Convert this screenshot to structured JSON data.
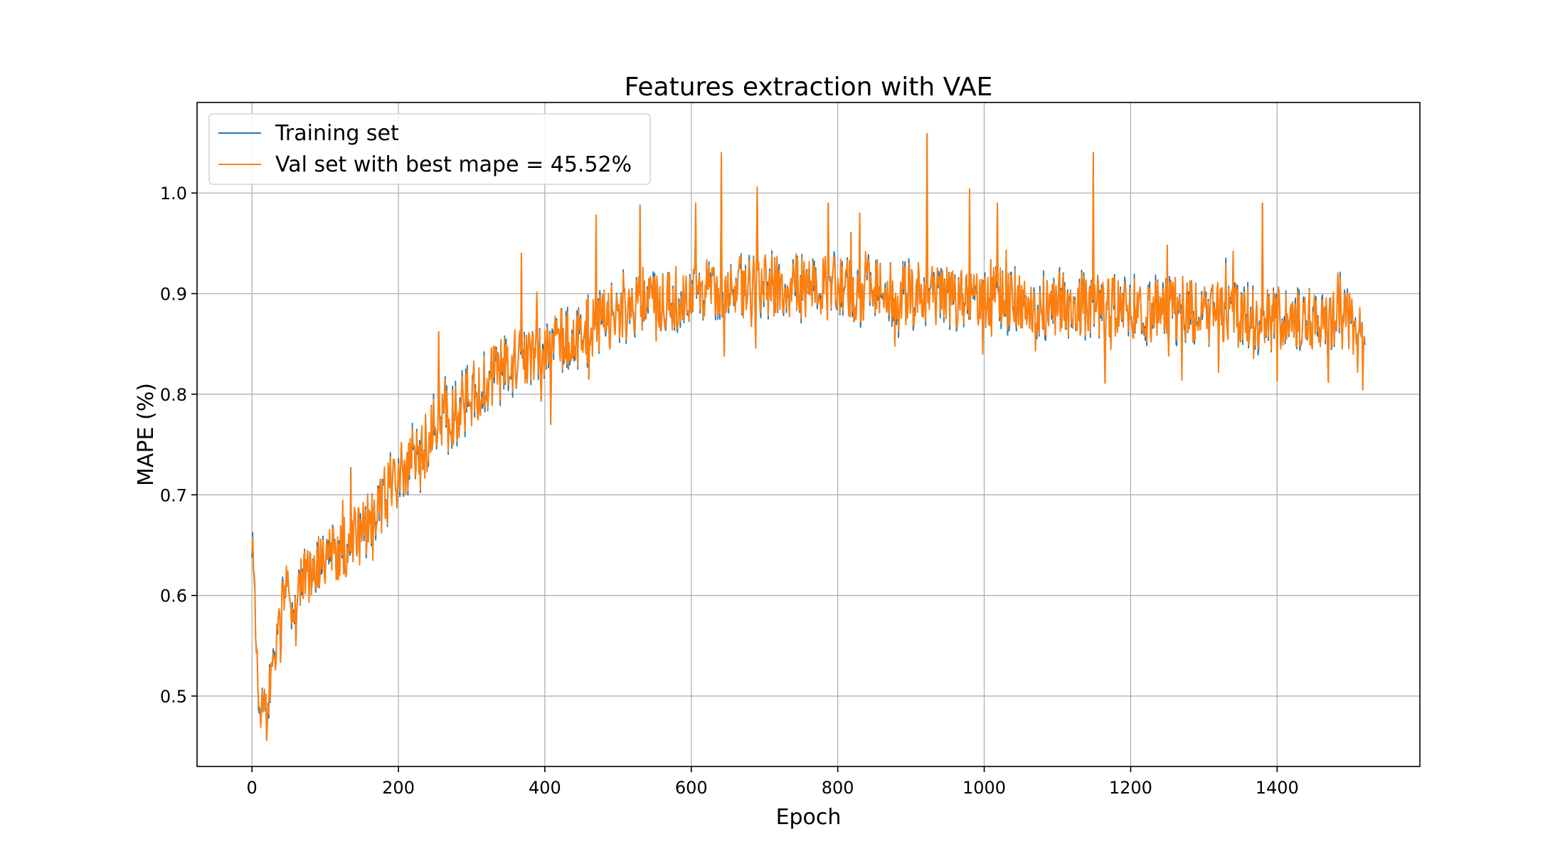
{
  "chart_data": {
    "type": "line",
    "title": "Features extraction with VAE",
    "xlabel": "Epoch",
    "ylabel": "MAPE (%)",
    "xlim": [
      -75,
      1595
    ],
    "ylim": [
      0.43,
      1.09
    ],
    "xticks": [
      0,
      200,
      400,
      600,
      800,
      1000,
      1200,
      1400
    ],
    "xtick_labels": [
      "0",
      "200",
      "400",
      "600",
      "800",
      "1000",
      "1200",
      "1400"
    ],
    "yticks": [
      0.5,
      0.6,
      0.7,
      0.8,
      0.9,
      1.0
    ],
    "ytick_labels": [
      "0.5",
      "0.6",
      "0.7",
      "0.8",
      "0.9",
      "1.0"
    ],
    "grid": true,
    "legend_position": "top-left",
    "epochs": [
      0,
      1520
    ],
    "series": [
      {
        "name": "Training set",
        "color": "#1f77b4",
        "trend": [
          [
            0,
            0.672
          ],
          [
            5,
            0.56
          ],
          [
            10,
            0.5
          ],
          [
            20,
            0.49
          ],
          [
            30,
            0.53
          ],
          [
            45,
            0.6
          ],
          [
            70,
            0.61
          ],
          [
            100,
            0.64
          ],
          [
            150,
            0.66
          ],
          [
            200,
            0.72
          ],
          [
            250,
            0.76
          ],
          [
            300,
            0.8
          ],
          [
            350,
            0.83
          ],
          [
            400,
            0.85
          ],
          [
            450,
            0.86
          ],
          [
            500,
            0.88
          ],
          [
            550,
            0.89
          ],
          [
            600,
            0.9
          ],
          [
            650,
            0.905
          ],
          [
            700,
            0.91
          ],
          [
            800,
            0.905
          ],
          [
            900,
            0.9
          ],
          [
            1000,
            0.895
          ],
          [
            1100,
            0.89
          ],
          [
            1200,
            0.885
          ],
          [
            1300,
            0.88
          ],
          [
            1400,
            0.875
          ],
          [
            1500,
            0.87
          ],
          [
            1520,
            0.855
          ]
        ],
        "spikes_high": [
          [
            255,
            0.862
          ],
          [
            368,
            0.94
          ],
          [
            470,
            0.978
          ],
          [
            530,
            0.988
          ],
          [
            606,
            0.99
          ],
          [
            641,
            1.04
          ],
          [
            690,
            1.006
          ],
          [
            787,
            0.99
          ],
          [
            830,
            0.98
          ],
          [
            922,
            1.059
          ],
          [
            980,
            1.004
          ],
          [
            1018,
            0.99
          ],
          [
            1149,
            1.04
          ],
          [
            1250,
            0.948
          ],
          [
            1340,
            0.942
          ],
          [
            1380,
            0.99
          ],
          [
            1470,
            0.962
          ]
        ],
        "spikes_low": [
          [
            15,
            0.484
          ],
          [
            20,
            0.456
          ],
          [
            60,
            0.55
          ],
          [
            165,
            0.635
          ],
          [
            395,
            0.793
          ],
          [
            408,
            0.77
          ],
          [
            460,
            0.815
          ],
          [
            645,
            0.838
          ],
          [
            878,
            0.848
          ],
          [
            998,
            0.84
          ],
          [
            1070,
            0.843
          ],
          [
            1165,
            0.811
          ],
          [
            1270,
            0.814
          ],
          [
            1320,
            0.822
          ],
          [
            1400,
            0.813
          ],
          [
            1470,
            0.812
          ],
          [
            1510,
            0.822
          ]
        ]
      },
      {
        "name": "Val set with best mape = 45.52%",
        "color": "#ff7f0e",
        "trend": [
          [
            0,
            0.672
          ],
          [
            5,
            0.56
          ],
          [
            10,
            0.5
          ],
          [
            20,
            0.49
          ],
          [
            30,
            0.53
          ],
          [
            45,
            0.6
          ],
          [
            70,
            0.61
          ],
          [
            100,
            0.64
          ],
          [
            150,
            0.66
          ],
          [
            200,
            0.72
          ],
          [
            250,
            0.76
          ],
          [
            300,
            0.8
          ],
          [
            350,
            0.83
          ],
          [
            400,
            0.85
          ],
          [
            450,
            0.86
          ],
          [
            500,
            0.88
          ],
          [
            550,
            0.89
          ],
          [
            600,
            0.9
          ],
          [
            650,
            0.905
          ],
          [
            700,
            0.91
          ],
          [
            800,
            0.905
          ],
          [
            900,
            0.9
          ],
          [
            1000,
            0.895
          ],
          [
            1100,
            0.89
          ],
          [
            1200,
            0.885
          ],
          [
            1300,
            0.88
          ],
          [
            1400,
            0.875
          ],
          [
            1500,
            0.87
          ],
          [
            1520,
            0.855
          ]
        ],
        "spikes_high": [
          [
            255,
            0.862
          ],
          [
            368,
            0.94
          ],
          [
            470,
            0.978
          ],
          [
            530,
            0.988
          ],
          [
            606,
            0.99
          ],
          [
            641,
            1.04
          ],
          [
            690,
            1.006
          ],
          [
            787,
            0.99
          ],
          [
            830,
            0.98
          ],
          [
            922,
            1.059
          ],
          [
            980,
            1.004
          ],
          [
            1018,
            0.99
          ],
          [
            1149,
            1.04
          ],
          [
            1250,
            0.948
          ],
          [
            1340,
            0.942
          ],
          [
            1380,
            0.99
          ],
          [
            1470,
            0.962
          ]
        ],
        "spikes_low": [
          [
            15,
            0.484
          ],
          [
            20,
            0.456
          ],
          [
            60,
            0.55
          ],
          [
            165,
            0.635
          ],
          [
            395,
            0.793
          ],
          [
            408,
            0.77
          ],
          [
            460,
            0.815
          ],
          [
            645,
            0.838
          ],
          [
            878,
            0.848
          ],
          [
            998,
            0.84
          ],
          [
            1070,
            0.843
          ],
          [
            1165,
            0.811
          ],
          [
            1270,
            0.814
          ],
          [
            1320,
            0.822
          ],
          [
            1400,
            0.813
          ],
          [
            1470,
            0.812
          ],
          [
            1510,
            0.822
          ]
        ]
      }
    ]
  }
}
